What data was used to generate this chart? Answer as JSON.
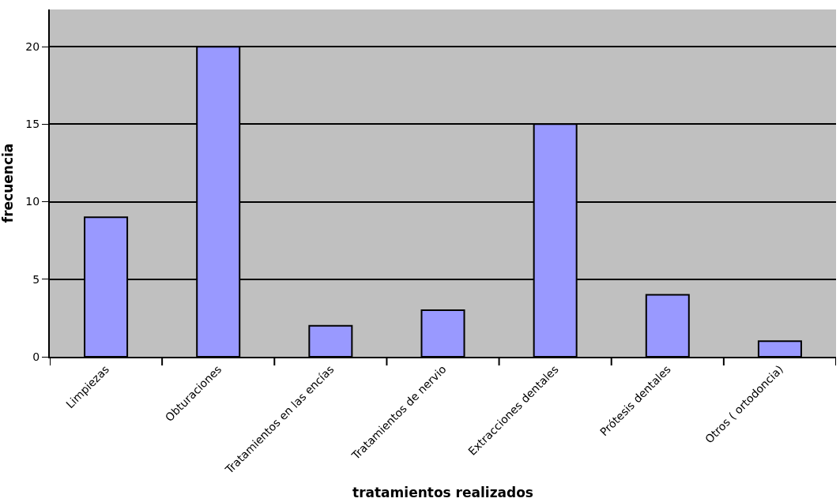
{
  "chart_data": {
    "type": "bar",
    "xlabel": "tratamientos realizados",
    "ylabel": "frecuencia",
    "categories": [
      "Limpiezas",
      "Obturaciones",
      "Tratamientos en las encías",
      "Tratamientos de nervio",
      "Extracciones dentales",
      "Prótesis dentales",
      "Otros ( ortodoncia)"
    ],
    "values": [
      9,
      20,
      2,
      3,
      15,
      4,
      1
    ],
    "color": "#9999ff",
    "ylim": [
      0,
      22.4
    ],
    "yticks": [
      0,
      5,
      10,
      15,
      20
    ],
    "grid": "y"
  }
}
